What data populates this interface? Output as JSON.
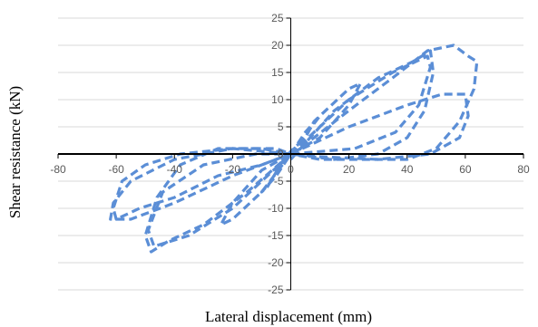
{
  "chart_data": {
    "type": "line",
    "title": "",
    "xlabel": "Lateral displacement (mm)",
    "ylabel": "Shear resistance (kN)",
    "xlim": [
      -80,
      80
    ],
    "ylim": [
      -25,
      25
    ],
    "xticks": [
      -80,
      -60,
      -40,
      -20,
      0,
      20,
      40,
      60,
      80
    ],
    "yticks": [
      -25,
      -20,
      -15,
      -10,
      -5,
      0,
      5,
      10,
      15,
      20,
      25
    ],
    "grid": "horizontal",
    "legend": "none",
    "line_style": "dashed",
    "color": "#5B8ED6",
    "series": [
      {
        "points": [
          [
            0,
            0
          ],
          [
            3,
            2
          ],
          [
            5,
            3
          ],
          [
            3,
            2
          ],
          [
            0,
            0.5
          ],
          [
            -3,
            -1.5
          ],
          [
            -5,
            -3
          ],
          [
            -3,
            -2
          ],
          [
            0,
            0
          ]
        ]
      },
      {
        "points": [
          [
            0,
            0
          ],
          [
            5,
            4
          ],
          [
            10,
            7
          ],
          [
            8,
            6
          ],
          [
            3,
            1
          ],
          [
            0,
            0
          ],
          [
            -5,
            -4
          ],
          [
            -10,
            -7
          ],
          [
            -8,
            -6
          ],
          [
            -3,
            -1.5
          ],
          [
            0,
            0
          ]
        ]
      },
      {
        "points": [
          [
            0,
            0
          ],
          [
            10,
            7
          ],
          [
            20,
            12
          ],
          [
            24,
            13
          ],
          [
            20,
            9
          ],
          [
            10,
            3
          ],
          [
            0,
            0
          ],
          [
            -10,
            -7
          ],
          [
            -20,
            -12
          ],
          [
            -24,
            -13
          ],
          [
            -20,
            -9
          ],
          [
            -10,
            -3
          ],
          [
            0,
            0
          ]
        ]
      },
      {
        "points": [
          [
            0,
            -1
          ],
          [
            15,
            8
          ],
          [
            30,
            14
          ],
          [
            42,
            17
          ],
          [
            48,
            19
          ],
          [
            49,
            15
          ],
          [
            46,
            8
          ],
          [
            40,
            3
          ],
          [
            30,
            0
          ],
          [
            15,
            -1
          ],
          [
            0,
            0
          ],
          [
            -15,
            -7
          ],
          [
            -30,
            -13
          ],
          [
            -42,
            -16
          ],
          [
            -48,
            -18
          ],
          [
            -50,
            -15
          ],
          [
            -46,
            -8
          ],
          [
            -38,
            -2
          ],
          [
            -25,
            1
          ],
          [
            -10,
            1
          ],
          [
            0,
            0
          ]
        ]
      },
      {
        "points": [
          [
            0,
            0
          ],
          [
            20,
            10
          ],
          [
            35,
            15
          ],
          [
            47,
            18
          ],
          [
            48,
            16
          ],
          [
            44,
            9
          ],
          [
            36,
            4
          ],
          [
            22,
            1
          ],
          [
            0,
            0
          ],
          [
            -20,
            -10
          ],
          [
            -35,
            -15
          ],
          [
            -47,
            -17
          ],
          [
            -49,
            -14
          ],
          [
            -44,
            -7
          ],
          [
            -30,
            -2
          ],
          [
            -12,
            0
          ],
          [
            0,
            0
          ]
        ]
      },
      {
        "points": [
          [
            0,
            0
          ],
          [
            8,
            3
          ],
          [
            20,
            8
          ],
          [
            35,
            14
          ],
          [
            47,
            19
          ],
          [
            56,
            20
          ],
          [
            61,
            18
          ],
          [
            64,
            17
          ],
          [
            63,
            12
          ],
          [
            58,
            6
          ],
          [
            50,
            1
          ],
          [
            40,
            -1
          ],
          [
            25,
            -1
          ],
          [
            10,
            -1
          ],
          [
            0,
            0
          ],
          [
            -10,
            -2
          ],
          [
            -25,
            -4
          ],
          [
            -40,
            -8
          ],
          [
            -52,
            -10
          ],
          [
            -60,
            -12
          ],
          [
            -61,
            -10
          ],
          [
            -58,
            -5
          ],
          [
            -50,
            -2
          ],
          [
            -38,
            0
          ],
          [
            -20,
            1
          ],
          [
            -5,
            1
          ],
          [
            0,
            0
          ]
        ]
      },
      {
        "points": [
          [
            0,
            0
          ],
          [
            20,
            5
          ],
          [
            40,
            9
          ],
          [
            52,
            11
          ],
          [
            60,
            11
          ],
          [
            61,
            7
          ],
          [
            58,
            3
          ],
          [
            48,
            0
          ],
          [
            30,
            -1
          ],
          [
            10,
            -0.5
          ],
          [
            0,
            0
          ],
          [
            -20,
            -4
          ],
          [
            -40,
            -9
          ],
          [
            -55,
            -12
          ],
          [
            -62,
            -12
          ],
          [
            -61,
            -9
          ],
          [
            -55,
            -5
          ],
          [
            -40,
            -1
          ],
          [
            -20,
            1
          ],
          [
            0,
            0
          ]
        ]
      }
    ]
  }
}
